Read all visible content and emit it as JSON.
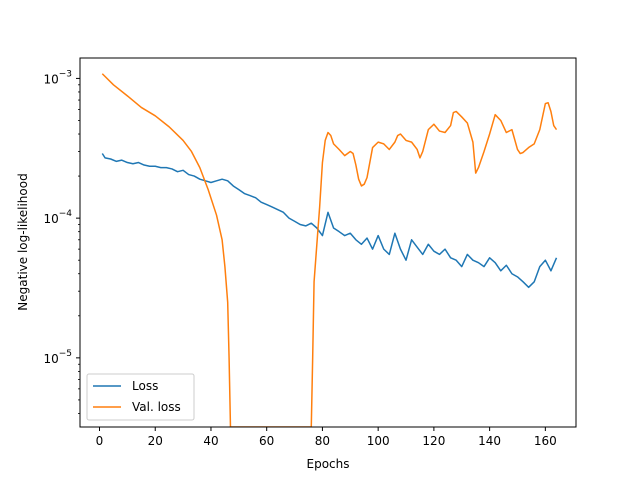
{
  "chart_data": {
    "type": "line",
    "xlabel": "Epochs",
    "ylabel": "Negative log-likelihood",
    "xlim": [
      -7,
      171
    ],
    "ylim": [
      3.2e-06,
      0.0014
    ],
    "yscale": "log",
    "grid": false,
    "legend_position": "lower-left",
    "x_ticks": [
      0,
      20,
      40,
      60,
      80,
      100,
      120,
      140,
      160
    ],
    "x_tick_labels": [
      "0",
      "20",
      "40",
      "60",
      "80",
      "100",
      "120",
      "140",
      "160"
    ],
    "y_ticks": [
      1e-05,
      0.0001,
      0.001
    ],
    "y_tick_labels": [
      {
        "base": "10",
        "exp": "−5"
      },
      {
        "base": "10",
        "exp": "−4"
      },
      {
        "base": "10",
        "exp": "−3"
      }
    ],
    "series": [
      {
        "name": "Loss",
        "color": "#1f77b4",
        "points": [
          [
            1,
            0.00029
          ],
          [
            2,
            0.00027
          ],
          [
            4,
            0.000265
          ],
          [
            6,
            0.000255
          ],
          [
            8,
            0.00026
          ],
          [
            10,
            0.00025
          ],
          [
            12,
            0.000245
          ],
          [
            14,
            0.00025
          ],
          [
            16,
            0.00024
          ],
          [
            18,
            0.000235
          ],
          [
            20,
            0.000235
          ],
          [
            22,
            0.00023
          ],
          [
            24,
            0.00023
          ],
          [
            26,
            0.000225
          ],
          [
            28,
            0.000215
          ],
          [
            30,
            0.00022
          ],
          [
            32,
            0.000205
          ],
          [
            34,
            0.0002
          ],
          [
            36,
            0.00019
          ],
          [
            38,
            0.000185
          ],
          [
            40,
            0.00018
          ],
          [
            42,
            0.000185
          ],
          [
            44,
            0.00019
          ],
          [
            46,
            0.000185
          ],
          [
            48,
            0.00017
          ],
          [
            50,
            0.00016
          ],
          [
            52,
            0.00015
          ],
          [
            54,
            0.000145
          ],
          [
            56,
            0.00014
          ],
          [
            58,
            0.00013
          ],
          [
            60,
            0.000125
          ],
          [
            62,
            0.00012
          ],
          [
            64,
            0.000115
          ],
          [
            66,
            0.00011
          ],
          [
            68,
            0.0001
          ],
          [
            70,
            9.5e-05
          ],
          [
            72,
            9e-05
          ],
          [
            74,
            8.8e-05
          ],
          [
            76,
            9.2e-05
          ],
          [
            78,
            8.5e-05
          ],
          [
            80,
            7.5e-05
          ],
          [
            82,
            0.00011
          ],
          [
            84,
            8.5e-05
          ],
          [
            86,
            8e-05
          ],
          [
            88,
            7.5e-05
          ],
          [
            90,
            7.8e-05
          ],
          [
            92,
            7e-05
          ],
          [
            94,
            6.5e-05
          ],
          [
            96,
            7.2e-05
          ],
          [
            98,
            6e-05
          ],
          [
            100,
            7.5e-05
          ],
          [
            102,
            6e-05
          ],
          [
            104,
            5.5e-05
          ],
          [
            106,
            7.8e-05
          ],
          [
            108,
            6e-05
          ],
          [
            110,
            5e-05
          ],
          [
            112,
            7e-05
          ],
          [
            114,
            6.2e-05
          ],
          [
            116,
            5.5e-05
          ],
          [
            118,
            6.5e-05
          ],
          [
            120,
            5.8e-05
          ],
          [
            122,
            5.5e-05
          ],
          [
            124,
            6e-05
          ],
          [
            126,
            5.2e-05
          ],
          [
            128,
            5e-05
          ],
          [
            130,
            4.5e-05
          ],
          [
            132,
            5.5e-05
          ],
          [
            134,
            5e-05
          ],
          [
            136,
            4.8e-05
          ],
          [
            138,
            4.5e-05
          ],
          [
            140,
            5.2e-05
          ],
          [
            142,
            4.8e-05
          ],
          [
            144,
            4.2e-05
          ],
          [
            146,
            4.6e-05
          ],
          [
            148,
            4e-05
          ],
          [
            150,
            3.8e-05
          ],
          [
            152,
            3.5e-05
          ],
          [
            154,
            3.2e-05
          ],
          [
            156,
            3.5e-05
          ],
          [
            158,
            4.5e-05
          ],
          [
            160,
            5e-05
          ],
          [
            162,
            4.2e-05
          ],
          [
            164,
            5.2e-05
          ]
        ]
      },
      {
        "name": "Val. loss",
        "color": "#ff7f0e",
        "points": [
          [
            1,
            0.00108
          ],
          [
            5,
            0.0009
          ],
          [
            10,
            0.00075
          ],
          [
            15,
            0.00062
          ],
          [
            20,
            0.00054
          ],
          [
            25,
            0.00045
          ],
          [
            30,
            0.00036
          ],
          [
            33,
            0.0003
          ],
          [
            36,
            0.00023
          ],
          [
            39,
            0.00016
          ],
          [
            42,
            0.000105
          ],
          [
            44,
            7e-05
          ],
          [
            45,
            4.5e-05
          ],
          [
            46,
            2.5e-05
          ],
          [
            46.5,
            1e-05
          ],
          [
            47,
            3.2e-06
          ],
          [
            76,
            3.2e-06
          ],
          [
            76.5,
            1e-05
          ],
          [
            77,
            3.5e-05
          ],
          [
            78,
            6.5e-05
          ],
          [
            79,
            0.00012
          ],
          [
            80,
            0.00025
          ],
          [
            81,
            0.00036
          ],
          [
            82,
            0.00041
          ],
          [
            83,
            0.00039
          ],
          [
            84,
            0.00034
          ],
          [
            86,
            0.00031
          ],
          [
            88,
            0.00028
          ],
          [
            90,
            0.0003
          ],
          [
            91,
            0.00029
          ],
          [
            92,
            0.00024
          ],
          [
            93,
            0.00019
          ],
          [
            94,
            0.00017
          ],
          [
            95,
            0.000175
          ],
          [
            96,
            0.000195
          ],
          [
            98,
            0.00032
          ],
          [
            100,
            0.00035
          ],
          [
            102,
            0.00034
          ],
          [
            104,
            0.00031
          ],
          [
            106,
            0.00035
          ],
          [
            107,
            0.00039
          ],
          [
            108,
            0.0004
          ],
          [
            110,
            0.00036
          ],
          [
            112,
            0.00035
          ],
          [
            114,
            0.00031
          ],
          [
            115,
            0.00027
          ],
          [
            116,
            0.0003
          ],
          [
            118,
            0.00043
          ],
          [
            120,
            0.00047
          ],
          [
            122,
            0.00042
          ],
          [
            124,
            0.00041
          ],
          [
            126,
            0.00046
          ],
          [
            127,
            0.00057
          ],
          [
            128,
            0.00058
          ],
          [
            130,
            0.00053
          ],
          [
            132,
            0.00048
          ],
          [
            134,
            0.00035
          ],
          [
            135,
            0.00021
          ],
          [
            136,
            0.00023
          ],
          [
            138,
            0.0003
          ],
          [
            140,
            0.0004
          ],
          [
            142,
            0.00055
          ],
          [
            144,
            0.0005
          ],
          [
            146,
            0.00041
          ],
          [
            148,
            0.00043
          ],
          [
            150,
            0.00031
          ],
          [
            151,
            0.00029
          ],
          [
            152,
            0.000295
          ],
          [
            154,
            0.00032
          ],
          [
            156,
            0.00034
          ],
          [
            158,
            0.00043
          ],
          [
            160,
            0.00066
          ],
          [
            161,
            0.00067
          ],
          [
            162,
            0.00058
          ],
          [
            163,
            0.00046
          ],
          [
            164,
            0.00043
          ]
        ]
      }
    ]
  }
}
